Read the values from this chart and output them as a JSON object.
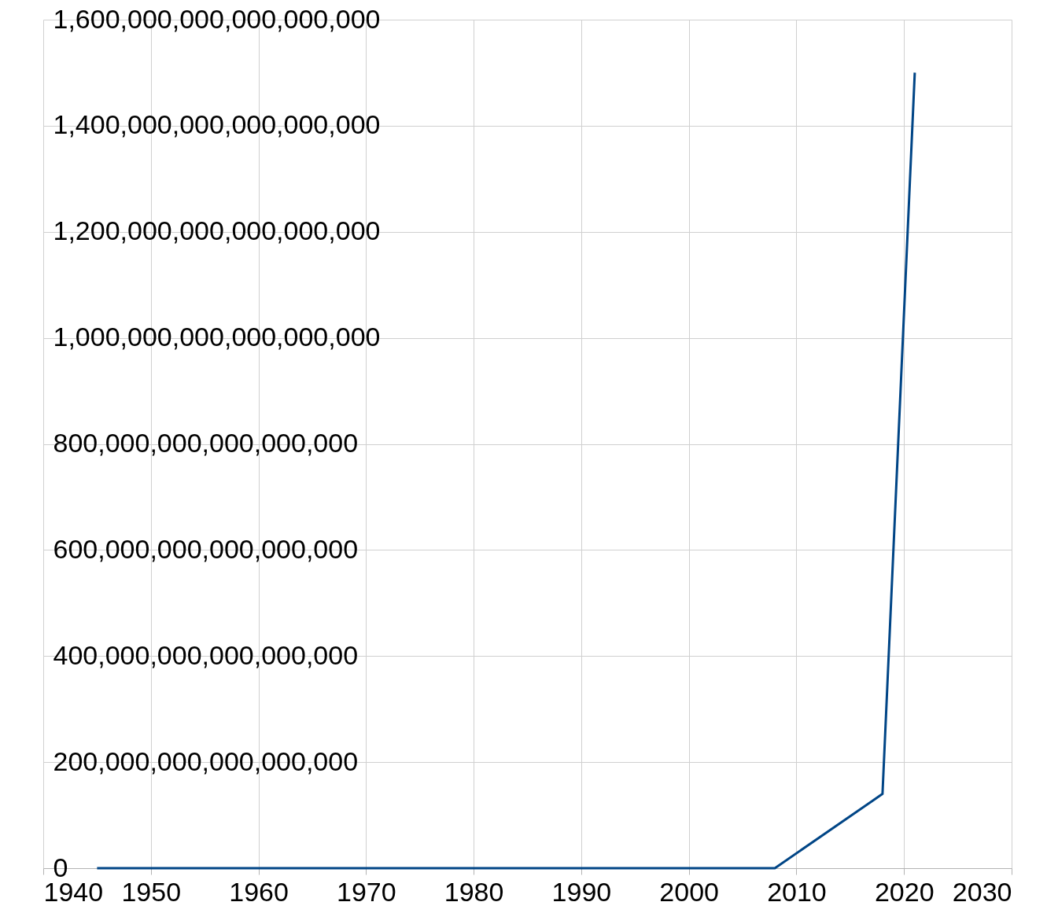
{
  "chart_data": {
    "type": "line",
    "x": [
      1945,
      2008,
      2018,
      2021
    ],
    "series": [
      {
        "color": "#004586",
        "values": [
          0,
          0,
          140000000000000000,
          1500000000000000000
        ]
      }
    ],
    "xlim": [
      1940,
      2030
    ],
    "xticks": [
      1940,
      1950,
      1960,
      1970,
      1980,
      1990,
      2000,
      2010,
      2020,
      2030
    ],
    "ylim": [
      0,
      1600000000000000000
    ],
    "yticks": [
      0,
      {
        "value": 200000000000000000,
        "label": "200,000,000,000,000,000"
      },
      {
        "value": 400000000000000000,
        "label": "400,000,000,000,000,000"
      },
      {
        "value": 600000000000000000,
        "label": "600,000,000,000,000,000"
      },
      {
        "value": 800000000000000000,
        "label": "800,000,000,000,000,000"
      },
      {
        "value": 1000000000000000000,
        "label": "1,000,000,000,000,000,000"
      },
      {
        "value": 1200000000000000000,
        "label": "1,200,000,000,000,000,000"
      },
      {
        "value": 1400000000000000000,
        "label": "1,400,000,000,000,000,000"
      },
      {
        "value": 1600000000000000000,
        "label": "1,600,000,000,000,000,000"
      }
    ],
    "grid": true,
    "marker": "none",
    "line_style": "solid"
  }
}
